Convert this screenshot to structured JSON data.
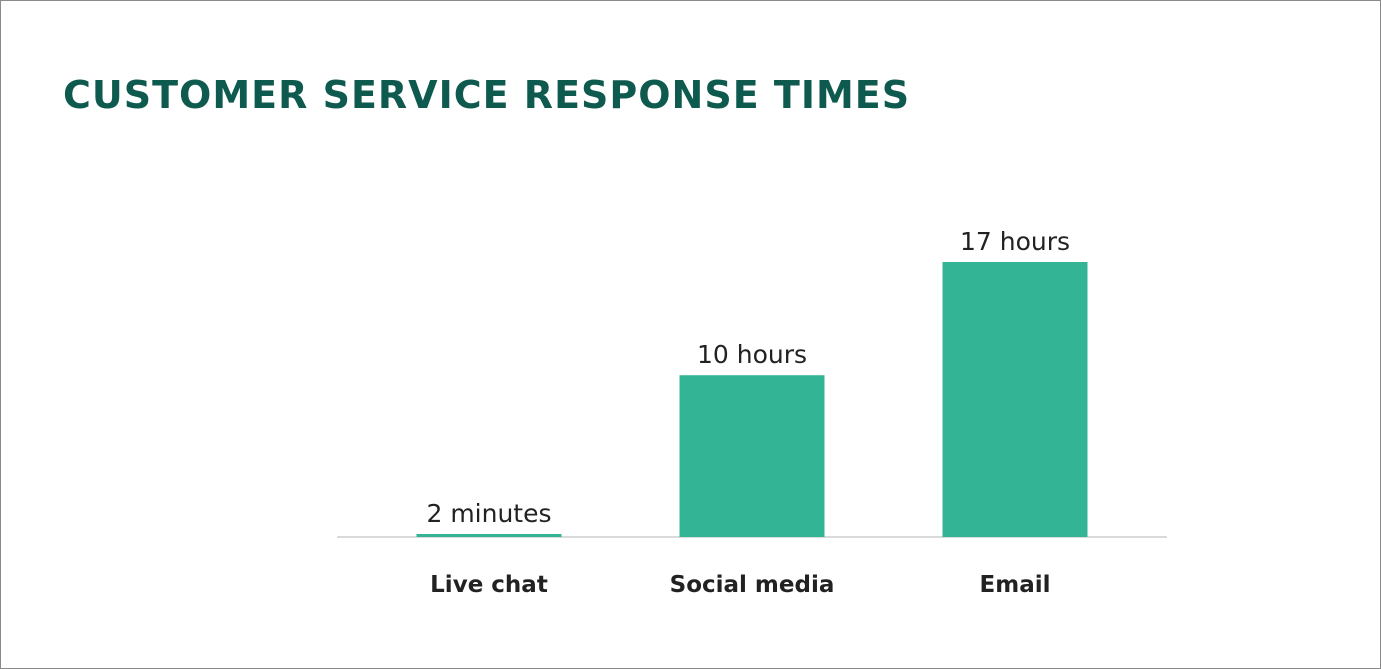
{
  "chart_data": {
    "type": "bar",
    "title": "CUSTOMER SERVICE RESPONSE TIMES",
    "xlabel": "",
    "ylabel": "",
    "categories": [
      "Live chat",
      "Social media",
      "Email"
    ],
    "values": [
      0.0333,
      10,
      17
    ],
    "value_labels": [
      "2 minutes",
      "10 hours",
      "17 hours"
    ],
    "ylim": [
      0,
      18
    ],
    "grid": false,
    "legend": "none",
    "colors": {
      "bar": "#33b595",
      "title": "#0f5a4f",
      "baseline": "#b5b5b5"
    }
  }
}
